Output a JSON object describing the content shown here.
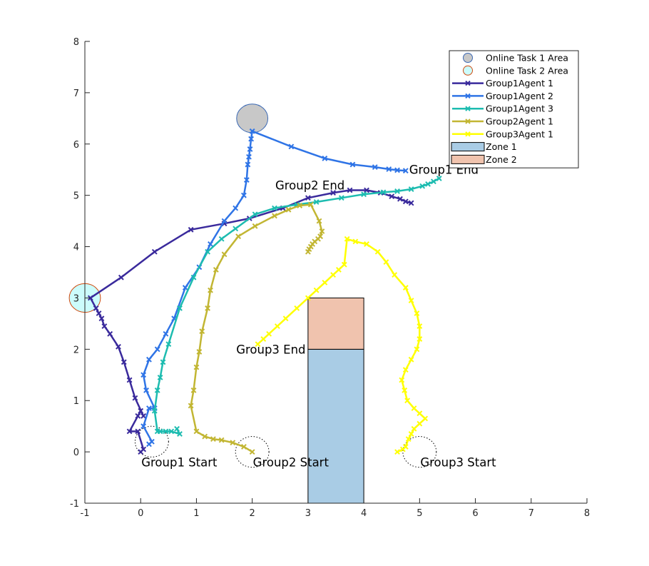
{
  "chart_data": {
    "type": "line",
    "xlim": [
      -1,
      8
    ],
    "ylim": [
      -1,
      8
    ],
    "xticks": [
      "-1",
      "0",
      "1",
      "2",
      "3",
      "4",
      "5",
      "6",
      "7",
      "8"
    ],
    "yticks": [
      "-1",
      "0",
      "1",
      "2",
      "3",
      "4",
      "5",
      "6",
      "7",
      "8"
    ],
    "grid": false,
    "legend_position": "top-right",
    "zones": [
      {
        "name": "Zone 1",
        "x": [
          3,
          4
        ],
        "y": [
          -1,
          2
        ],
        "color": "#a9cce5"
      },
      {
        "name": "Zone 2",
        "x": [
          3,
          4
        ],
        "y": [
          2,
          3
        ],
        "color": "#f0c3ae"
      }
    ],
    "task_areas": [
      {
        "name": "Online Task 1 Area",
        "center": [
          2,
          6.5
        ],
        "radius": 0.28,
        "fill": "#c8c8c8",
        "stroke": "#3a68b4"
      },
      {
        "name": "Online Task 2 Area",
        "center": [
          -1,
          3
        ],
        "radius": 0.28,
        "fill": "#ccfcfc",
        "stroke": "#d04a0e"
      }
    ],
    "start_circles": [
      {
        "center": [
          0.2,
          0.2
        ],
        "radius": 0.3
      },
      {
        "center": [
          2,
          0
        ],
        "radius": 0.3
      },
      {
        "center": [
          5,
          0
        ],
        "radius": 0.3
      }
    ],
    "annotations": [
      {
        "text": "Group1 Start",
        "x": 0,
        "y": -0.2
      },
      {
        "text": "Group2 Start",
        "x": 2,
        "y": -0.2
      },
      {
        "text": "Group3 Start",
        "x": 5,
        "y": -0.2
      },
      {
        "text": "Group1 End",
        "x": 4.8,
        "y": 5.5
      },
      {
        "text": "Group2 End",
        "x": 2.4,
        "y": 5.2
      },
      {
        "text": "Group3 End",
        "x": 1.7,
        "y": 2
      }
    ],
    "series": [
      {
        "name": "Group1Agent 1",
        "color": "#3a2a9c",
        "x": [
          0,
          0.05,
          -0.05,
          -0.2,
          -0.05,
          0,
          0.05,
          -0.1,
          -0.2,
          -0.3,
          -0.4,
          -0.55,
          -0.65,
          -0.7,
          -0.75,
          -0.8,
          -0.9,
          -0.35,
          0.25,
          0.9,
          1.5,
          1.95,
          2.55,
          3,
          3.45,
          3.75,
          4.05,
          4.3,
          4.5,
          4.65,
          4.75,
          4.85
        ],
        "y": [
          0,
          0.05,
          0.4,
          0.4,
          0.7,
          0.8,
          0.7,
          1.05,
          1.4,
          1.75,
          2.05,
          2.3,
          2.45,
          2.6,
          2.7,
          2.8,
          3,
          3.4,
          3.9,
          4.33,
          4.45,
          4.55,
          4.75,
          4.95,
          5.05,
          5.1,
          5.1,
          5.05,
          4.98,
          4.93,
          4.88,
          4.85
        ]
      },
      {
        "name": "Group1Agent 2",
        "color": "#2f74e6",
        "x": [
          0.15,
          0.2,
          0.05,
          0.15,
          0.25,
          0.1,
          0.05,
          0.15,
          0.3,
          0.45,
          0.6,
          0.8,
          1.05,
          1.25,
          1.5,
          1.7,
          1.85,
          1.9,
          1.92,
          1.94,
          1.96,
          1.98,
          2,
          2.7,
          3.3,
          3.8,
          4.2,
          4.45,
          4.6,
          4.75
        ],
        "y": [
          0.15,
          0.2,
          0.5,
          0.85,
          0.85,
          1.2,
          1.5,
          1.8,
          2.0,
          2.3,
          2.6,
          3.2,
          3.6,
          4.05,
          4.5,
          4.75,
          5.0,
          5.3,
          5.6,
          5.75,
          5.9,
          6.1,
          6.25,
          5.95,
          5.72,
          5.6,
          5.55,
          5.51,
          5.49,
          5.48
        ]
      },
      {
        "name": "Group1Agent 3",
        "color": "#1dbcb0",
        "x": [
          0.65,
          0.7,
          0.55,
          0.45,
          0.35,
          0.3,
          0.25,
          0.3,
          0.35,
          0.4,
          0.5,
          0.7,
          0.95,
          1.2,
          1.45,
          1.7,
          2.05,
          2.4,
          2.8,
          3.15,
          3.6,
          4.0,
          4.35,
          4.6,
          4.85,
          5.05,
          5.15,
          5.25,
          5.35
        ],
        "y": [
          0.45,
          0.35,
          0.4,
          0.4,
          0.4,
          0.4,
          0.8,
          1.2,
          1.45,
          1.75,
          2.1,
          2.8,
          3.4,
          3.9,
          4.15,
          4.35,
          4.63,
          4.75,
          4.82,
          4.87,
          4.95,
          5.02,
          5.06,
          5.08,
          5.12,
          5.18,
          5.22,
          5.27,
          5.33
        ]
      },
      {
        "name": "Group2Agent 1",
        "color": "#c2b633",
        "x": [
          2,
          1.85,
          1.65,
          1.45,
          1.3,
          1.15,
          1.0,
          0.9,
          0.95,
          1.0,
          1.05,
          1.1,
          1.2,
          1.25,
          1.35,
          1.5,
          1.75,
          2.05,
          2.4,
          2.65,
          2.85,
          3.05,
          3.2,
          3.25,
          3.22,
          3.18,
          3.12,
          3.08,
          3.05,
          3.02,
          3
        ],
        "y": [
          0,
          0.1,
          0.18,
          0.23,
          0.25,
          0.3,
          0.4,
          0.9,
          1.2,
          1.65,
          1.95,
          2.35,
          2.8,
          3.15,
          3.55,
          3.85,
          4.2,
          4.4,
          4.6,
          4.72,
          4.8,
          4.82,
          4.5,
          4.3,
          4.2,
          4.15,
          4.1,
          4.05,
          4.0,
          3.95,
          3.9
        ]
      },
      {
        "name": "Group3Agent 1",
        "color": "#ffff00",
        "x": [
          4.6,
          4.7,
          4.75,
          4.8,
          4.85,
          4.9,
          5.0,
          5.1,
          5.0,
          4.9,
          4.78,
          4.73,
          4.68,
          4.75,
          4.85,
          4.95,
          5.0,
          5.0,
          4.95,
          4.85,
          4.75,
          4.55,
          4.4,
          4.25,
          4.05,
          3.85,
          3.7,
          3.65,
          3.55,
          3.45,
          3.3,
          3.15,
          3.0,
          2.8,
          2.6,
          2.45,
          2.3,
          2.2,
          2.1
        ],
        "y": [
          0,
          0.05,
          0.1,
          0.25,
          0.35,
          0.45,
          0.55,
          0.65,
          0.75,
          0.85,
          1.0,
          1.2,
          1.4,
          1.6,
          1.8,
          2.0,
          2.2,
          2.45,
          2.7,
          2.95,
          3.2,
          3.45,
          3.7,
          3.9,
          4.05,
          4.1,
          4.15,
          3.65,
          3.55,
          3.45,
          3.3,
          3.15,
          3.0,
          2.8,
          2.6,
          2.45,
          2.3,
          2.2,
          2.1
        ]
      }
    ]
  }
}
